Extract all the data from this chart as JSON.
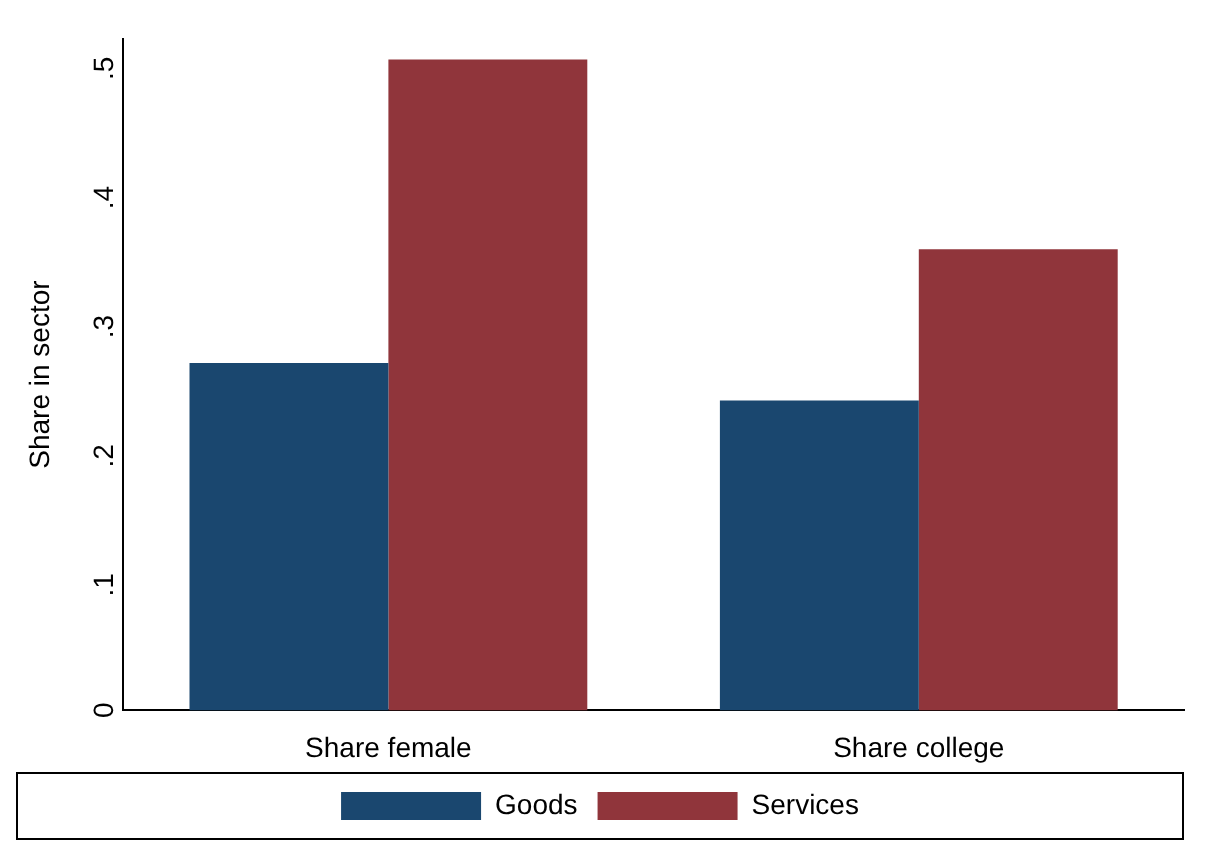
{
  "chart_data": {
    "type": "bar",
    "ylabel": "Share in sector",
    "categories": [
      "Share female",
      "Share college"
    ],
    "series": [
      {
        "name": "Goods",
        "color": "#1a476f",
        "values": [
          0.269,
          0.24
        ]
      },
      {
        "name": "Services",
        "color": "#90353b",
        "values": [
          0.504,
          0.357
        ]
      }
    ],
    "ylim": [
      0,
      0.52
    ],
    "yticks": [
      0,
      {
        "value": 0.1,
        "label": ".1"
      },
      {
        "value": 0.2,
        "label": ".2"
      },
      {
        "value": 0.3,
        "label": ".3"
      },
      {
        "value": 0.4,
        "label": ".4"
      },
      {
        "value": 0.5,
        "label": ".5"
      }
    ],
    "grid": false,
    "legend": "bottom"
  }
}
